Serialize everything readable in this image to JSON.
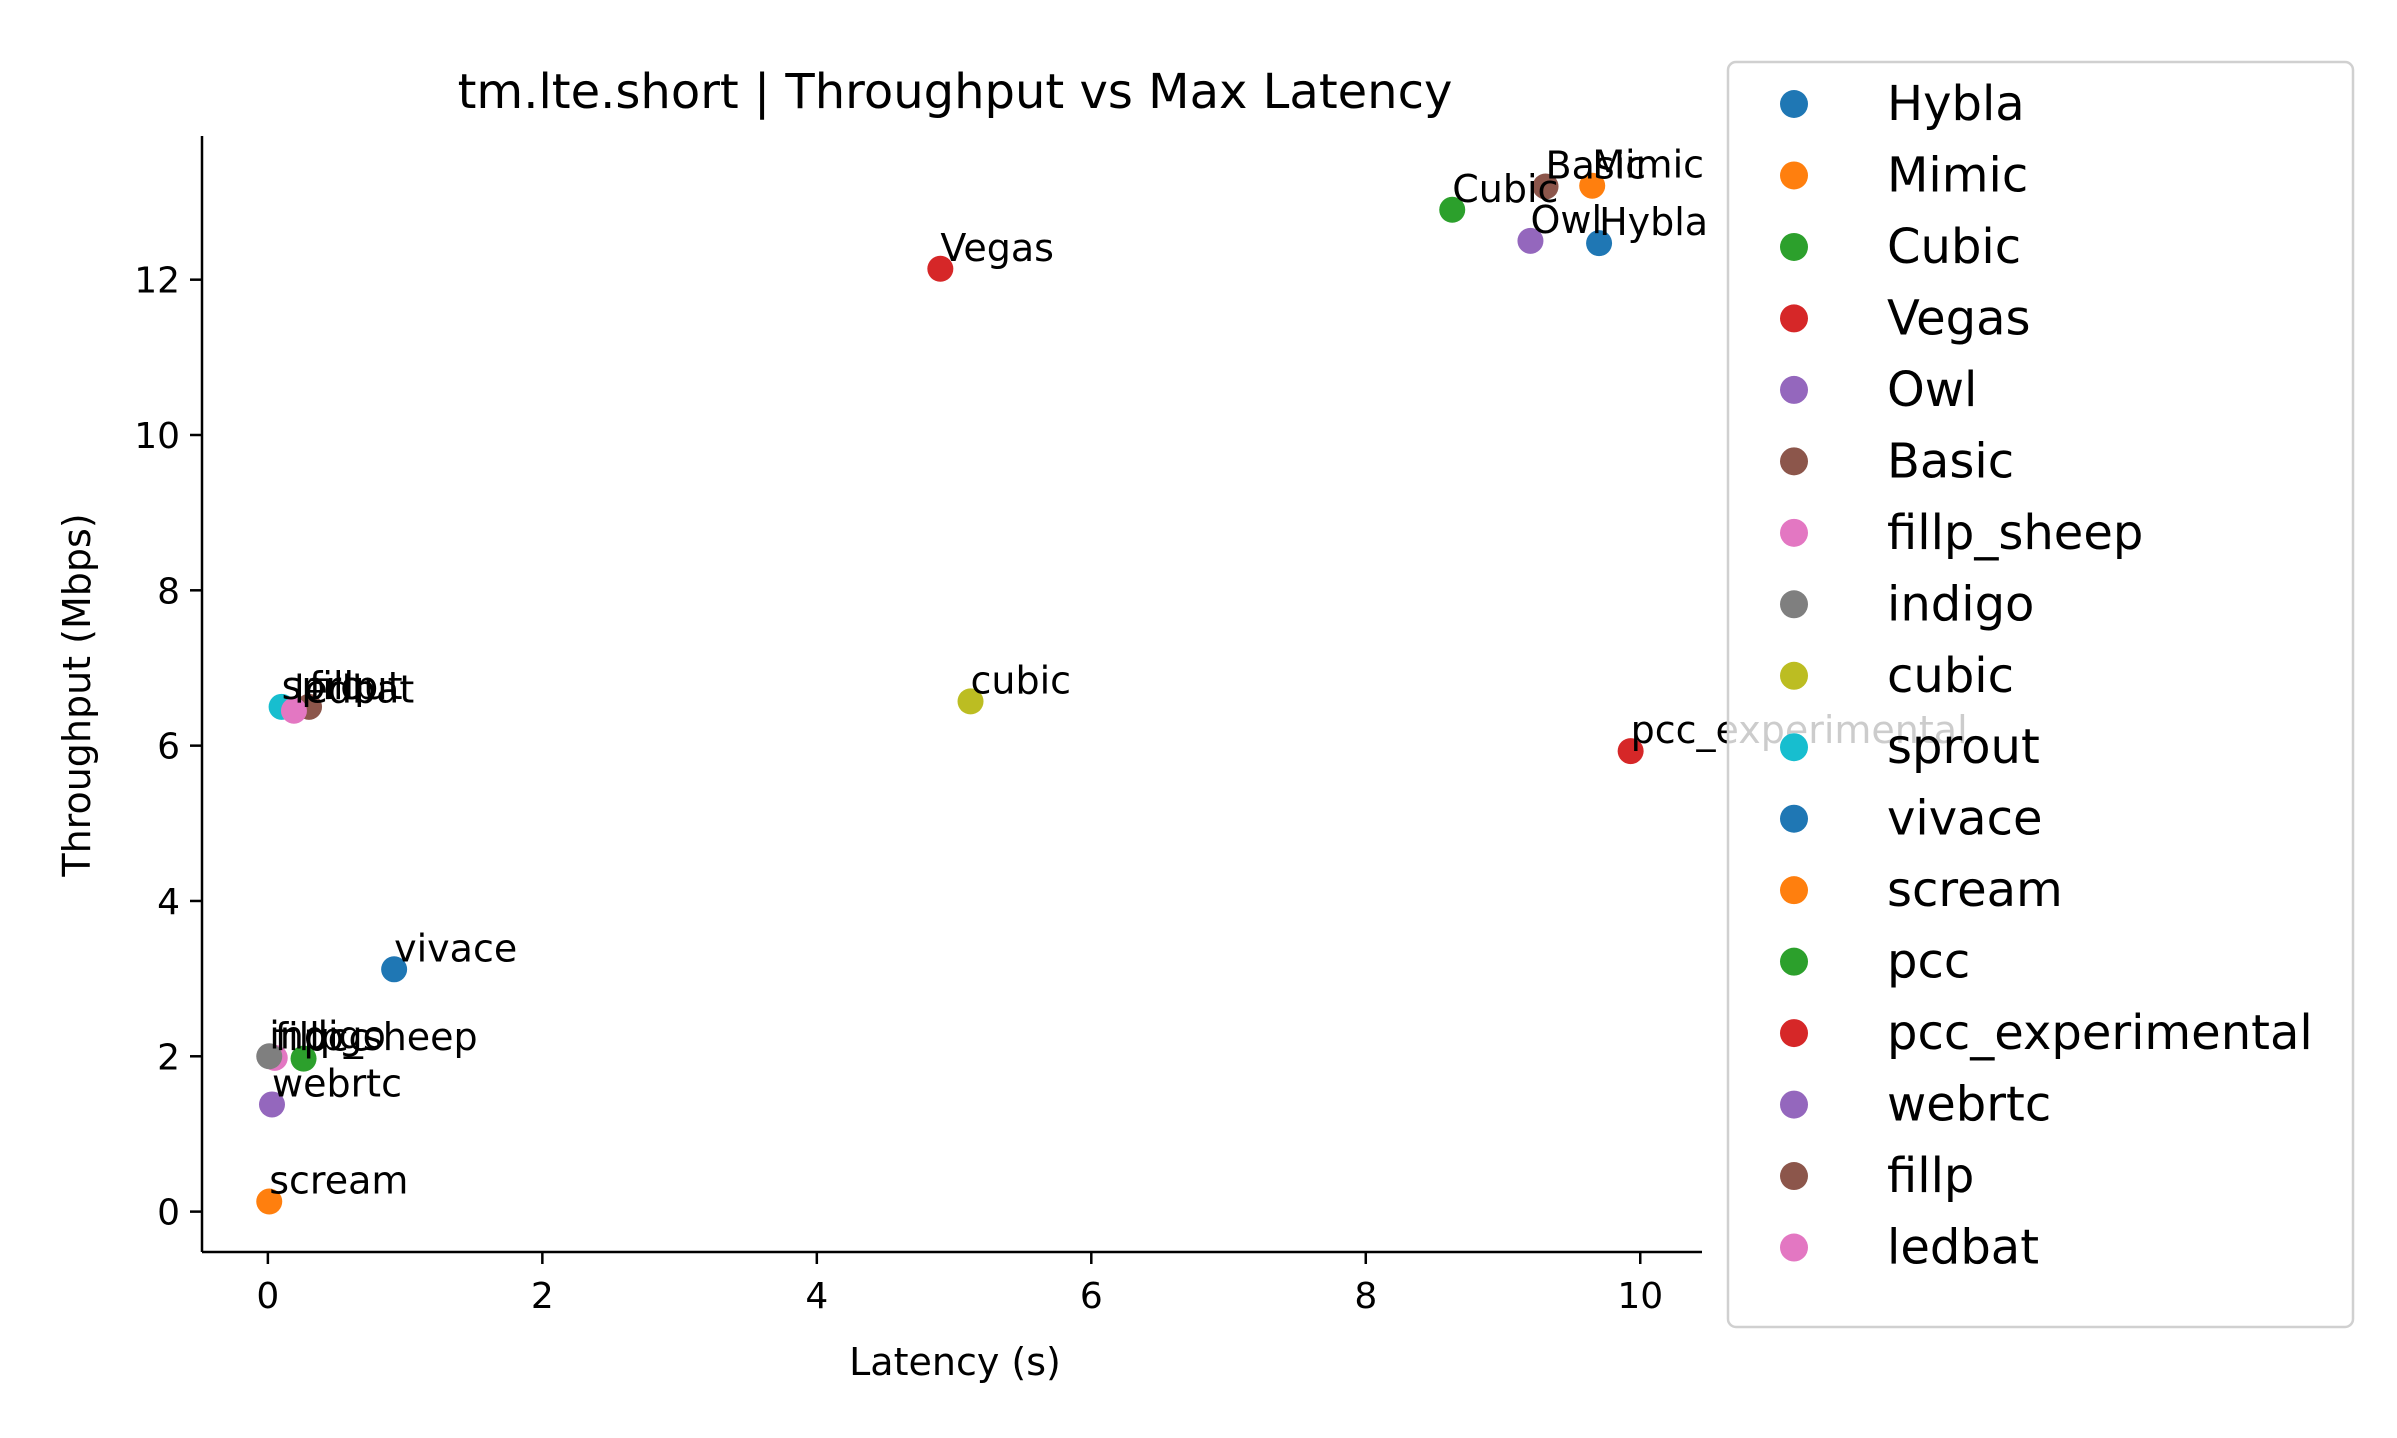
{
  "chart_data": {
    "type": "scatter",
    "title": "tm.lte.short | Throughput vs Max Latency",
    "xlabel": "Latency (s)",
    "ylabel": "Throughput (Mbps)",
    "xlim": [
      -0.48,
      10.45
    ],
    "ylim": [
      -0.52,
      13.85
    ],
    "xticks": [
      0,
      2,
      4,
      6,
      8,
      10
    ],
    "yticks": [
      0,
      2,
      4,
      6,
      8,
      10,
      12
    ],
    "grid": false,
    "legend_position": "right, outside",
    "series": [
      {
        "name": "Hybla",
        "color": "#1f77b4",
        "x": 9.7,
        "y": 12.47
      },
      {
        "name": "Mimic",
        "color": "#ff7f0e",
        "x": 9.65,
        "y": 13.21
      },
      {
        "name": "Cubic",
        "color": "#2ca02c",
        "x": 8.63,
        "y": 12.9
      },
      {
        "name": "Vegas",
        "color": "#d62728",
        "x": 4.9,
        "y": 12.14
      },
      {
        "name": "Owl",
        "color": "#9467bd",
        "x": 9.2,
        "y": 12.5
      },
      {
        "name": "Basic",
        "color": "#8c564b",
        "x": 9.31,
        "y": 13.2
      },
      {
        "name": "fillp_sheep",
        "color": "#e377c2",
        "x": 0.05,
        "y": 1.98
      },
      {
        "name": "indigo",
        "color": "#7f7f7f",
        "x": 0.01,
        "y": 2.0
      },
      {
        "name": "cubic",
        "color": "#bcbd22",
        "x": 5.12,
        "y": 6.57
      },
      {
        "name": "sprout",
        "color": "#17becf",
        "x": 0.1,
        "y": 6.5
      },
      {
        "name": "vivace",
        "color": "#1f77b4",
        "x": 0.92,
        "y": 3.12
      },
      {
        "name": "scream",
        "color": "#ff7f0e",
        "x": 0.01,
        "y": 0.13
      },
      {
        "name": "pcc",
        "color": "#2ca02c",
        "x": 0.26,
        "y": 1.97
      },
      {
        "name": "pcc_experimental",
        "color": "#d62728",
        "x": 9.93,
        "y": 5.93
      },
      {
        "name": "webrtc",
        "color": "#9467bd",
        "x": 0.03,
        "y": 1.38
      },
      {
        "name": "fillp",
        "color": "#8c564b",
        "x": 0.3,
        "y": 6.5
      },
      {
        "name": "ledbat",
        "color": "#e377c2",
        "x": 0.19,
        "y": 6.45
      }
    ]
  }
}
